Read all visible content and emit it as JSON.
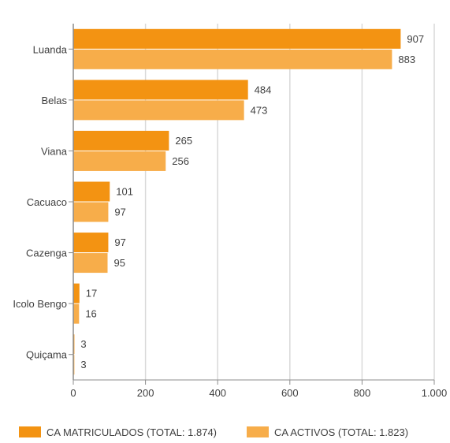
{
  "chart_data": {
    "type": "bar",
    "orientation": "horizontal",
    "categories": [
      "Luanda",
      "Belas",
      "Viana",
      "Cacuaco",
      "Cazenga",
      "Icolo Bengo",
      "Quiçama"
    ],
    "series": [
      {
        "name": "CA MATRICULADOS (TOTAL: 1.874)",
        "values": [
          907,
          484,
          265,
          101,
          97,
          17,
          3
        ],
        "color": "#f39312"
      },
      {
        "name": "CA ACTIVOS (TOTAL: 1.823)",
        "values": [
          883,
          473,
          256,
          97,
          95,
          16,
          3
        ],
        "color": "#f7ad4a"
      }
    ],
    "xlim": [
      0,
      1000
    ],
    "xticks": [
      0,
      200,
      400,
      600,
      800,
      1000
    ],
    "xtick_labels": [
      "0",
      "200",
      "400",
      "600",
      "800",
      "1.000"
    ],
    "grid": true,
    "legend_position": "bottom",
    "title": "",
    "xlabel": "",
    "ylabel": ""
  },
  "colors": {
    "grid": "#d9d9d9",
    "axis": "#8c8c8c",
    "text": "#404040"
  }
}
